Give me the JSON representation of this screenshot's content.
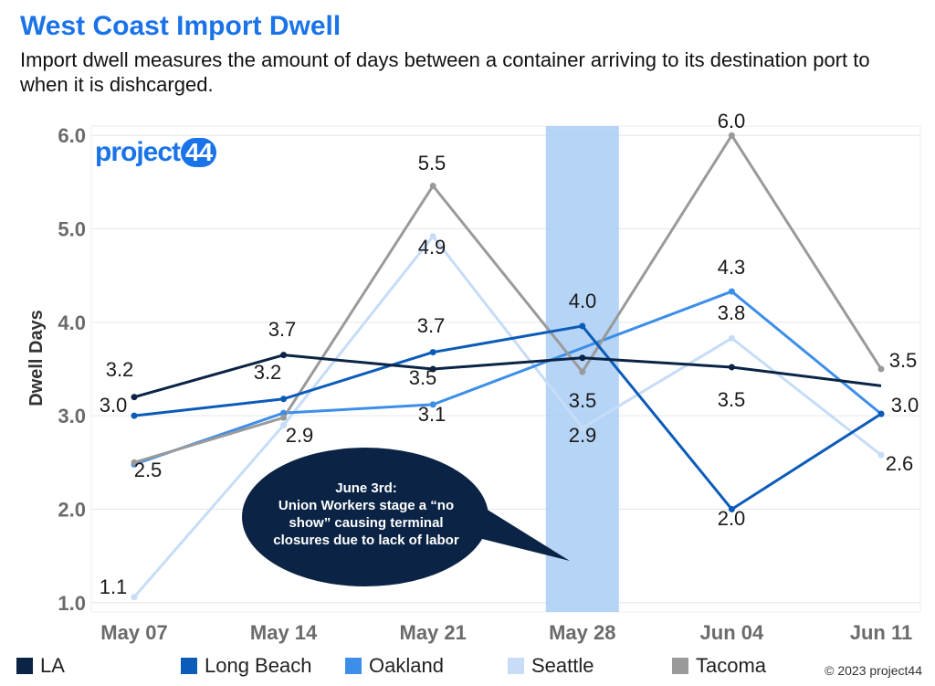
{
  "header": {
    "title": "West Coast Import Dwell",
    "subtitle": "Import dwell measures the amount of days between a container arriving to its destination port to when it is dishcarged."
  },
  "logo": {
    "text": "project",
    "number": "44"
  },
  "callout": {
    "lines": [
      "June 3rd:",
      "Union Workers stage a “no",
      "show”  causing terminal",
      "closures due to lack of labor"
    ]
  },
  "copyright": "© 2023 project44",
  "chart_data": {
    "type": "line",
    "title": "West Coast Import Dwell",
    "subtitle": "Import dwell measures the amount of days between a container arriving to its destination port to when it is dishcarged.",
    "xlabel": "",
    "ylabel": "Dwell Days",
    "categories": [
      "May 07",
      "May 14",
      "May 21",
      "May 28",
      "Jun 04",
      "Jun 11"
    ],
    "ylim": [
      0.9,
      6.1
    ],
    "yticks": [
      "1.0",
      "2.0",
      "3.0",
      "4.0",
      "5.0",
      "6.0"
    ],
    "grid": true,
    "legend_position": "bottom",
    "highlight_category": "May 28",
    "series": [
      {
        "name": "LA",
        "color": "#0b2445",
        "values": [
          3.2,
          3.65,
          3.5,
          3.62,
          3.52,
          3.32
        ],
        "labels": [
          "3.2",
          "3.7",
          "",
          "",
          "3.5",
          ""
        ]
      },
      {
        "name": "Long Beach",
        "color": "#0b5bb8",
        "values": [
          3.0,
          3.18,
          3.68,
          3.96,
          2.0,
          3.02
        ],
        "labels": [
          "3.0",
          "3.2",
          "3.7",
          "4.0",
          "2.0",
          "3.0"
        ]
      },
      {
        "name": "Oakland",
        "color": "#3d8ee8",
        "values": [
          2.48,
          3.03,
          3.12,
          null,
          4.33,
          3.02
        ],
        "labels": [
          "",
          "",
          "3.1",
          "",
          "4.3",
          ""
        ]
      },
      {
        "name": "Seattle",
        "color": "#c6dcf7",
        "values": [
          1.06,
          2.9,
          4.92,
          2.87,
          3.83,
          2.58
        ],
        "labels": [
          "1.1",
          "2.9",
          "4.9",
          "2.9",
          "3.8",
          "2.6"
        ]
      },
      {
        "name": "Tacoma",
        "color": "#9a9a9a",
        "values": [
          2.5,
          2.98,
          5.46,
          3.47,
          6.0,
          3.5
        ],
        "labels": [
          "2.5",
          "",
          "5.5",
          "3.5",
          "6.0",
          "3.5"
        ]
      }
    ],
    "extra_labels": [
      "3.5"
    ]
  }
}
